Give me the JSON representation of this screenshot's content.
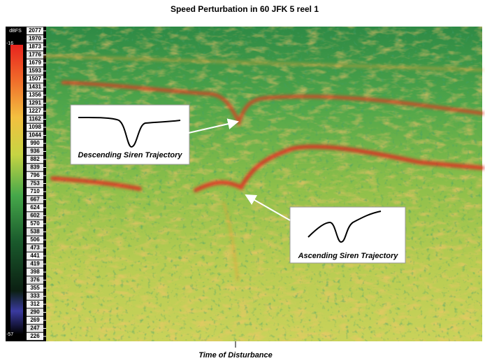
{
  "chart_data": {
    "type": "spectrogram",
    "title": "Speed Perturbation in 60 JFK 5 reel 1",
    "colorbar_label": "dBFS",
    "zlim": [
      -16,
      -57
    ],
    "frequency_labels": [
      2077,
      1970,
      1873,
      1776,
      1679,
      1593,
      1507,
      1431,
      1356,
      1291,
      1227,
      1162,
      1098,
      1044,
      990,
      936,
      882,
      839,
      796,
      753,
      710,
      667,
      624,
      602,
      570,
      538,
      506,
      473,
      441,
      419,
      398,
      376,
      355,
      333,
      312,
      290,
      269,
      247,
      226
    ],
    "annotations": [
      "Descending Siren Trajectory",
      "Ascending Siren Trajectory"
    ],
    "xlabel": "Time of Disturbance"
  }
}
